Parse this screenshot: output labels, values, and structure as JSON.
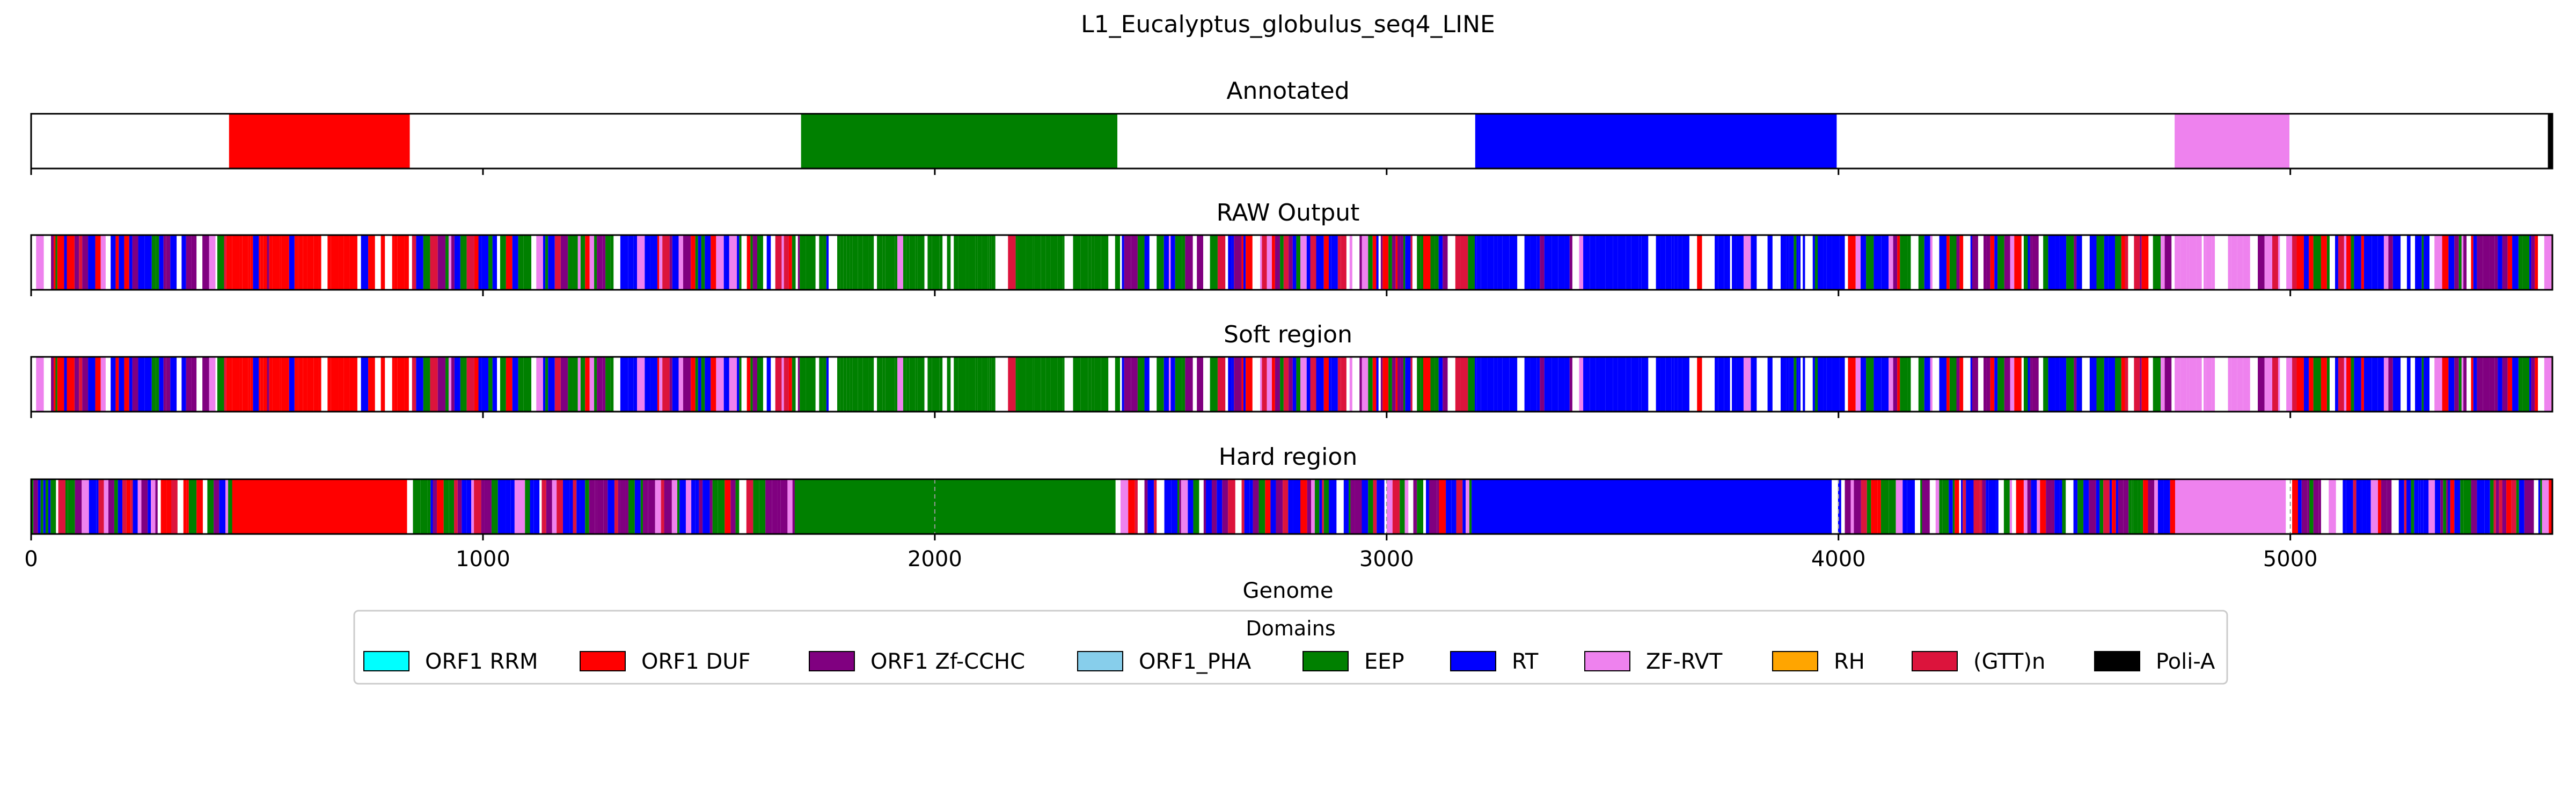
{
  "chart_data": {
    "type": "genome-track",
    "title": "L1_Eucalyptus_globulus_seq4_LINE",
    "xlabel": "Genome",
    "xlim": [
      0,
      5580
    ],
    "xticks": [
      0,
      1000,
      2000,
      3000,
      4000,
      5000
    ],
    "colors": {
      "ORF1 RRM": "#00ffff",
      "ORF1 DUF": "#ff0000",
      "ORF1 Zf-CCHC": "#800080",
      "ORF1_PHA": "#87ceeb",
      "EEP": "#008000",
      "RT": "#0000ff",
      "ZF-RVT": "#ee82ee",
      "RH": "#ffa500",
      "(GTT)n": "#dc143c",
      "Poli-A": "#000000"
    },
    "tracks": [
      {
        "title": "Annotated",
        "segments": [
          {
            "domain": "ORF1 DUF",
            "start": 438,
            "end": 838
          },
          {
            "domain": "EEP",
            "start": 1704,
            "end": 2404
          },
          {
            "domain": "RT",
            "start": 3196,
            "end": 3996
          },
          {
            "domain": "ZF-RVT",
            "start": 4744,
            "end": 4998
          },
          {
            "domain": "Poli-A",
            "start": 5570,
            "end": 5580
          }
        ]
      },
      {
        "title": "RAW Output",
        "segments": []
      },
      {
        "title": "Soft region",
        "segments": []
      },
      {
        "title": "Hard region",
        "segments": [
          {
            "domain": "ORF1 DUF",
            "start": 445,
            "end": 832
          },
          {
            "domain": "EEP",
            "start": 1690,
            "end": 2400
          },
          {
            "domain": "RT",
            "start": 3200,
            "end": 3985
          },
          {
            "domain": "ZF-RVT",
            "start": 4745,
            "end": 4990
          }
        ]
      }
    ],
    "legend": {
      "title": "Domains",
      "placement": "bottom-center",
      "entries": [
        "ORF1 RRM",
        "ORF1 DUF",
        "ORF1 Zf-CCHC",
        "ORF1_PHA",
        "EEP",
        "RT",
        "ZF-RVT",
        "RH",
        "(GTT)n",
        "Poli-A"
      ]
    }
  }
}
